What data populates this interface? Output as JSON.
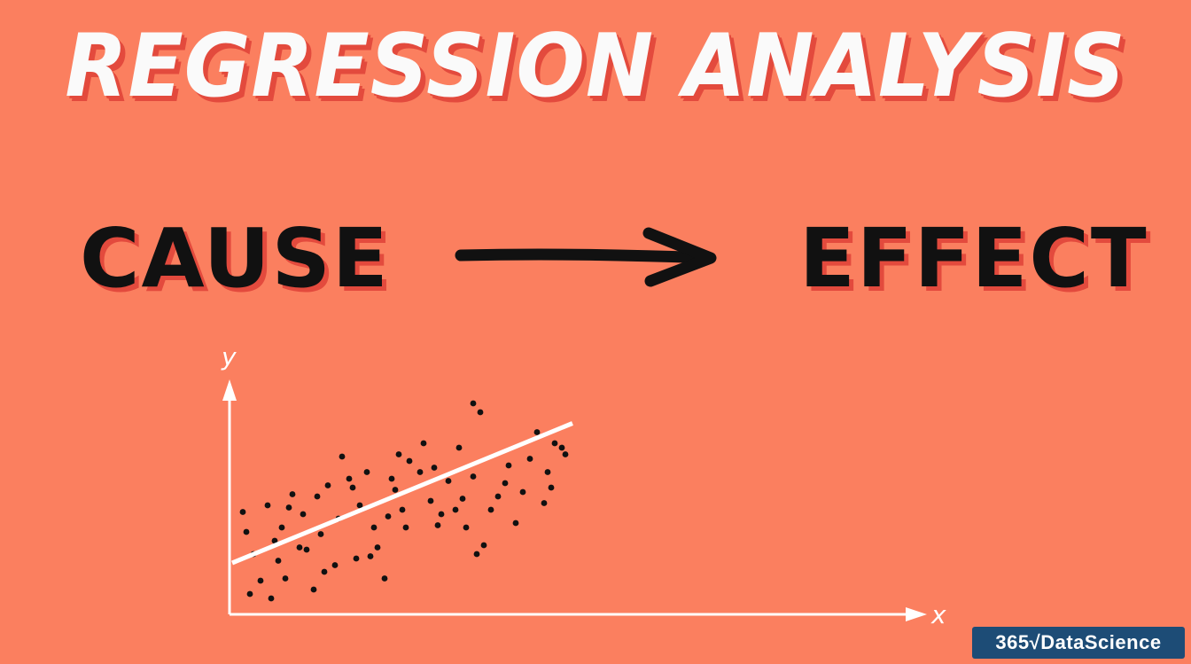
{
  "title": "REGRESSION ANALYSIS",
  "cause_label": "CAUSE",
  "effect_label": "EFFECT",
  "brand": {
    "text": "365√DataScience",
    "background_color": "#1d4c76"
  },
  "colors": {
    "background": "#fb7f5f",
    "title": "#fafafa",
    "title_shadow": "#e34a3d",
    "words": "#111111",
    "axes_and_line": "#ffffff",
    "points": "#111111"
  },
  "chart_data": {
    "type": "scatter",
    "xlabel": "x",
    "ylabel": "y",
    "xlim": [
      0,
      10
    ],
    "ylim": [
      0,
      10
    ],
    "grid": false,
    "regression_line": {
      "x": [
        0,
        9.6
      ],
      "y": [
        2.2,
        8.5
      ]
    },
    "points": [
      [
        0.4,
        3.6
      ],
      [
        0.6,
        2.6
      ],
      [
        0.3,
        4.5
      ],
      [
        1.0,
        4.8
      ],
      [
        1.4,
        3.8
      ],
      [
        1.7,
        5.3
      ],
      [
        2.0,
        4.4
      ],
      [
        2.5,
        3.5
      ],
      [
        3.1,
        7.0
      ],
      [
        3.5,
        2.4
      ],
      [
        4.3,
        1.5
      ],
      [
        4.0,
        3.8
      ],
      [
        4.8,
        4.6
      ],
      [
        5.8,
        3.9
      ],
      [
        5.3,
        6.3
      ],
      [
        6.4,
        7.4
      ],
      [
        7.3,
        4.6
      ],
      [
        7.8,
        6.6
      ],
      [
        8.2,
        5.4
      ],
      [
        9.1,
        7.6
      ],
      [
        9.4,
        7.1
      ],
      [
        8.6,
        8.1
      ],
      [
        6.8,
        9.4
      ],
      [
        7.0,
        9.0
      ],
      [
        2.3,
        1.0
      ],
      [
        1.1,
        0.6
      ],
      [
        1.5,
        1.5
      ],
      [
        2.9,
        2.1
      ],
      [
        4.6,
        5.5
      ],
      [
        3.3,
        6.0
      ],
      [
        2.7,
        5.7
      ],
      [
        6.1,
        5.9
      ],
      [
        7.5,
        5.2
      ],
      [
        8.9,
        6.3
      ],
      [
        1.9,
        2.9
      ],
      [
        5.6,
        5.0
      ],
      [
        4.1,
        2.9
      ],
      [
        6.6,
        3.8
      ],
      [
        3.8,
        6.3
      ],
      [
        5.0,
        6.8
      ],
      [
        0.8,
        1.4
      ],
      [
        1.3,
        2.3
      ],
      [
        2.1,
        2.8
      ],
      [
        3.6,
        4.8
      ],
      [
        4.9,
        3.8
      ],
      [
        6.3,
        4.6
      ],
      [
        7.1,
        3.0
      ],
      [
        8.0,
        4.0
      ],
      [
        9.0,
        5.6
      ],
      [
        5.4,
        7.6
      ],
      [
        2.4,
        5.2
      ],
      [
        1.6,
        4.7
      ],
      [
        3.0,
        4.2
      ],
      [
        4.5,
        6.0
      ],
      [
        5.7,
        6.5
      ],
      [
        7.7,
        5.8
      ],
      [
        8.4,
        6.9
      ],
      [
        6.8,
        6.1
      ],
      [
        0.5,
        0.8
      ],
      [
        2.6,
        1.8
      ],
      [
        3.9,
        2.5
      ],
      [
        4.4,
        4.3
      ],
      [
        5.9,
        4.4
      ],
      [
        6.9,
        2.6
      ],
      [
        8.8,
        4.9
      ],
      [
        9.3,
        7.4
      ],
      [
        1.2,
        3.2
      ],
      [
        3.4,
        5.6
      ],
      [
        4.7,
        7.1
      ],
      [
        6.5,
        5.1
      ]
    ]
  }
}
